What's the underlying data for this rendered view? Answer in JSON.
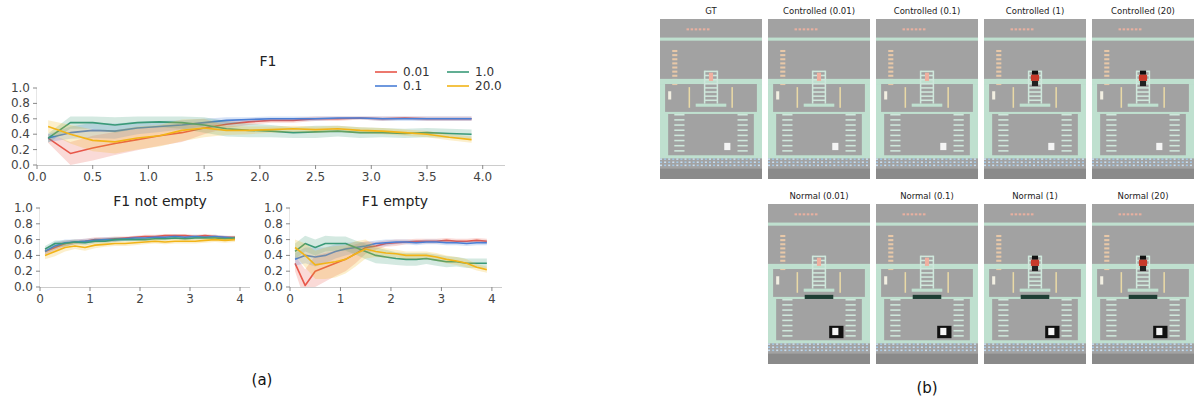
{
  "chart_data": [
    {
      "type": "line",
      "title": "F1",
      "x": [
        0.1,
        0.3,
        0.5,
        0.7,
        0.9,
        1.1,
        1.3,
        1.5,
        1.7,
        1.9,
        2.1,
        2.3,
        2.5,
        2.7,
        2.9,
        3.1,
        3.3,
        3.5,
        3.7,
        3.9
      ],
      "series": [
        {
          "name": "0.01",
          "color": "#e8574a",
          "values": [
            0.35,
            0.15,
            0.22,
            0.28,
            0.33,
            0.38,
            0.42,
            0.48,
            0.53,
            0.56,
            0.58,
            0.58,
            0.6,
            0.6,
            0.61,
            0.6,
            0.61,
            0.6,
            0.6,
            0.6
          ],
          "error": [
            0.06,
            0.15,
            0.16,
            0.15,
            0.14,
            0.13,
            0.12,
            0.08,
            0.05,
            0.04,
            0.03,
            0.03,
            0.03,
            0.03,
            0.02,
            0.03,
            0.02,
            0.03,
            0.03,
            0.03
          ]
        },
        {
          "name": "0.1",
          "color": "#4a7fd6",
          "values": [
            0.35,
            0.42,
            0.45,
            0.44,
            0.48,
            0.5,
            0.52,
            0.55,
            0.58,
            0.59,
            0.6,
            0.6,
            0.6,
            0.61,
            0.61,
            0.6,
            0.6,
            0.6,
            0.6,
            0.6
          ],
          "error": [
            0.05,
            0.08,
            0.1,
            0.1,
            0.08,
            0.07,
            0.06,
            0.05,
            0.04,
            0.03,
            0.03,
            0.03,
            0.03,
            0.02,
            0.02,
            0.03,
            0.03,
            0.03,
            0.03,
            0.03
          ]
        },
        {
          "name": "1.0",
          "color": "#3a9a78",
          "values": [
            0.35,
            0.55,
            0.55,
            0.52,
            0.55,
            0.56,
            0.55,
            0.52,
            0.47,
            0.45,
            0.44,
            0.42,
            0.43,
            0.44,
            0.42,
            0.42,
            0.41,
            0.42,
            0.41,
            0.4
          ],
          "error": [
            0.06,
            0.08,
            0.08,
            0.1,
            0.08,
            0.07,
            0.08,
            0.1,
            0.1,
            0.09,
            0.08,
            0.07,
            0.08,
            0.07,
            0.07,
            0.06,
            0.06,
            0.06,
            0.06,
            0.06
          ]
        },
        {
          "name": "20.0",
          "color": "#f2b418",
          "values": [
            0.5,
            0.4,
            0.32,
            0.3,
            0.35,
            0.38,
            0.45,
            0.48,
            0.45,
            0.45,
            0.46,
            0.47,
            0.46,
            0.47,
            0.45,
            0.44,
            0.42,
            0.4,
            0.36,
            0.33
          ],
          "error": [
            0.08,
            0.12,
            0.14,
            0.15,
            0.15,
            0.14,
            0.14,
            0.12,
            0.06,
            0.05,
            0.04,
            0.04,
            0.04,
            0.04,
            0.04,
            0.04,
            0.04,
            0.04,
            0.04,
            0.04
          ]
        }
      ],
      "xlim": [
        0,
        4.2
      ],
      "ylim": [
        0,
        1
      ],
      "xticks": [
        {
          "value": 0,
          "label": "0.0"
        },
        0.5,
        {
          "value": 1,
          "label": "1.0"
        },
        1.5,
        {
          "value": 2,
          "label": "2.0"
        },
        2.5,
        {
          "value": 3,
          "label": "3.0"
        },
        3.5,
        {
          "value": 4,
          "label": "4.0"
        }
      ],
      "yticks": [
        {
          "value": 0,
          "label": "0.0"
        },
        0.2,
        0.4,
        0.6,
        0.8,
        {
          "value": 1,
          "label": "1.0"
        }
      ],
      "legend": "upper right"
    },
    {
      "type": "line",
      "title": "F1 not empty",
      "x": [
        0.1,
        0.3,
        0.5,
        0.7,
        0.9,
        1.1,
        1.3,
        1.5,
        1.7,
        1.9,
        2.1,
        2.3,
        2.5,
        2.7,
        2.9,
        3.1,
        3.3,
        3.5,
        3.7,
        3.9
      ],
      "series": [
        {
          "color": "#e8574a",
          "values": [
            0.45,
            0.5,
            0.55,
            0.57,
            0.58,
            0.6,
            0.6,
            0.61,
            0.62,
            0.63,
            0.64,
            0.64,
            0.65,
            0.65,
            0.65,
            0.64,
            0.65,
            0.64,
            0.63,
            0.63
          ],
          "error": [
            0.04,
            0.05,
            0.04,
            0.03,
            0.03,
            0.03,
            0.03,
            0.03,
            0.02,
            0.02,
            0.02,
            0.02,
            0.02,
            0.02,
            0.02,
            0.02,
            0.02,
            0.02,
            0.02,
            0.02
          ]
        },
        {
          "color": "#4a7fd6",
          "values": [
            0.45,
            0.52,
            0.56,
            0.57,
            0.58,
            0.59,
            0.6,
            0.6,
            0.61,
            0.62,
            0.62,
            0.63,
            0.63,
            0.64,
            0.63,
            0.64,
            0.63,
            0.64,
            0.63,
            0.62
          ],
          "error": [
            0.04,
            0.05,
            0.04,
            0.03,
            0.03,
            0.03,
            0.03,
            0.03,
            0.02,
            0.02,
            0.02,
            0.02,
            0.02,
            0.02,
            0.02,
            0.02,
            0.02,
            0.02,
            0.02,
            0.02
          ]
        },
        {
          "color": "#3a9a78",
          "values": [
            0.48,
            0.55,
            0.55,
            0.57,
            0.56,
            0.58,
            0.58,
            0.6,
            0.6,
            0.6,
            0.6,
            0.61,
            0.61,
            0.62,
            0.61,
            0.62,
            0.62,
            0.62,
            0.61,
            0.62
          ],
          "error": [
            0.04,
            0.04,
            0.04,
            0.03,
            0.03,
            0.03,
            0.03,
            0.03,
            0.02,
            0.02,
            0.02,
            0.02,
            0.02,
            0.02,
            0.02,
            0.02,
            0.02,
            0.02,
            0.02,
            0.02
          ]
        },
        {
          "color": "#f2b418",
          "values": [
            0.4,
            0.45,
            0.5,
            0.52,
            0.5,
            0.53,
            0.54,
            0.55,
            0.55,
            0.56,
            0.57,
            0.58,
            0.57,
            0.58,
            0.58,
            0.58,
            0.59,
            0.6,
            0.59,
            0.6
          ],
          "error": [
            0.05,
            0.06,
            0.05,
            0.04,
            0.04,
            0.04,
            0.03,
            0.03,
            0.03,
            0.03,
            0.03,
            0.03,
            0.03,
            0.03,
            0.03,
            0.03,
            0.03,
            0.03,
            0.03,
            0.03
          ]
        }
      ],
      "xlim": [
        0,
        4.2
      ],
      "ylim": [
        0,
        1
      ],
      "xticks": [
        0,
        1,
        2,
        3,
        4
      ],
      "yticks": [
        {
          "value": 0,
          "label": "0.0"
        },
        0.2,
        0.4,
        0.6,
        0.8,
        {
          "value": 1,
          "label": "1.0"
        }
      ]
    },
    {
      "type": "line",
      "title": "F1 empty",
      "x": [
        0.1,
        0.3,
        0.5,
        0.7,
        0.9,
        1.1,
        1.3,
        1.5,
        1.7,
        1.9,
        2.1,
        2.3,
        2.5,
        2.7,
        2.9,
        3.1,
        3.3,
        3.5,
        3.7,
        3.9
      ],
      "series": [
        {
          "color": "#e8574a",
          "values": [
            0.3,
            0.02,
            0.2,
            0.25,
            0.3,
            0.35,
            0.42,
            0.5,
            0.52,
            0.55,
            0.56,
            0.57,
            0.58,
            0.58,
            0.58,
            0.59,
            0.58,
            0.58,
            0.59,
            0.58
          ],
          "error": [
            0.1,
            0.2,
            0.2,
            0.18,
            0.16,
            0.15,
            0.12,
            0.08,
            0.05,
            0.04,
            0.04,
            0.03,
            0.03,
            0.03,
            0.03,
            0.03,
            0.03,
            0.03,
            0.03,
            0.03
          ]
        },
        {
          "color": "#4a7fd6",
          "values": [
            0.35,
            0.4,
            0.38,
            0.4,
            0.45,
            0.48,
            0.5,
            0.52,
            0.55,
            0.56,
            0.57,
            0.57,
            0.56,
            0.57,
            0.57,
            0.56,
            0.56,
            0.55,
            0.56,
            0.56
          ],
          "error": [
            0.08,
            0.1,
            0.12,
            0.1,
            0.09,
            0.08,
            0.07,
            0.05,
            0.04,
            0.04,
            0.03,
            0.03,
            0.03,
            0.03,
            0.03,
            0.03,
            0.03,
            0.03,
            0.03,
            0.03
          ]
        },
        {
          "color": "#3a9a78",
          "values": [
            0.45,
            0.55,
            0.5,
            0.55,
            0.55,
            0.55,
            0.5,
            0.45,
            0.4,
            0.38,
            0.36,
            0.35,
            0.35,
            0.36,
            0.34,
            0.32,
            0.32,
            0.3,
            0.3,
            0.3
          ],
          "error": [
            0.1,
            0.1,
            0.1,
            0.1,
            0.09,
            0.09,
            0.09,
            0.1,
            0.1,
            0.09,
            0.08,
            0.08,
            0.08,
            0.07,
            0.07,
            0.07,
            0.06,
            0.06,
            0.06,
            0.06
          ]
        },
        {
          "color": "#f2b418",
          "values": [
            0.5,
            0.4,
            0.28,
            0.3,
            0.32,
            0.35,
            0.42,
            0.48,
            0.45,
            0.43,
            0.42,
            0.4,
            0.4,
            0.4,
            0.38,
            0.35,
            0.33,
            0.3,
            0.25,
            0.22
          ],
          "error": [
            0.1,
            0.15,
            0.18,
            0.2,
            0.2,
            0.18,
            0.16,
            0.12,
            0.07,
            0.06,
            0.05,
            0.05,
            0.05,
            0.05,
            0.05,
            0.05,
            0.05,
            0.05,
            0.04,
            0.04
          ]
        }
      ],
      "xlim": [
        0,
        4.2
      ],
      "ylim": [
        0,
        1
      ],
      "xticks": [
        0,
        1,
        2,
        3,
        4
      ],
      "yticks": [
        {
          "value": 0,
          "label": "0.0"
        },
        0.2,
        0.4,
        0.6,
        0.8,
        {
          "value": 1,
          "label": "1.0"
        }
      ]
    }
  ],
  "figure": {
    "panel_labels": [
      "(a)",
      "(b)"
    ],
    "screenshots": {
      "top": [
        "GT",
        "Controlled (0.01)",
        "Controlled (0.1)",
        "Controlled (1)",
        "Controlled (20)"
      ],
      "bottom": [
        "Normal (0.01)",
        "Normal (0.1)",
        "Normal (1)",
        "Normal (20)"
      ]
    }
  }
}
